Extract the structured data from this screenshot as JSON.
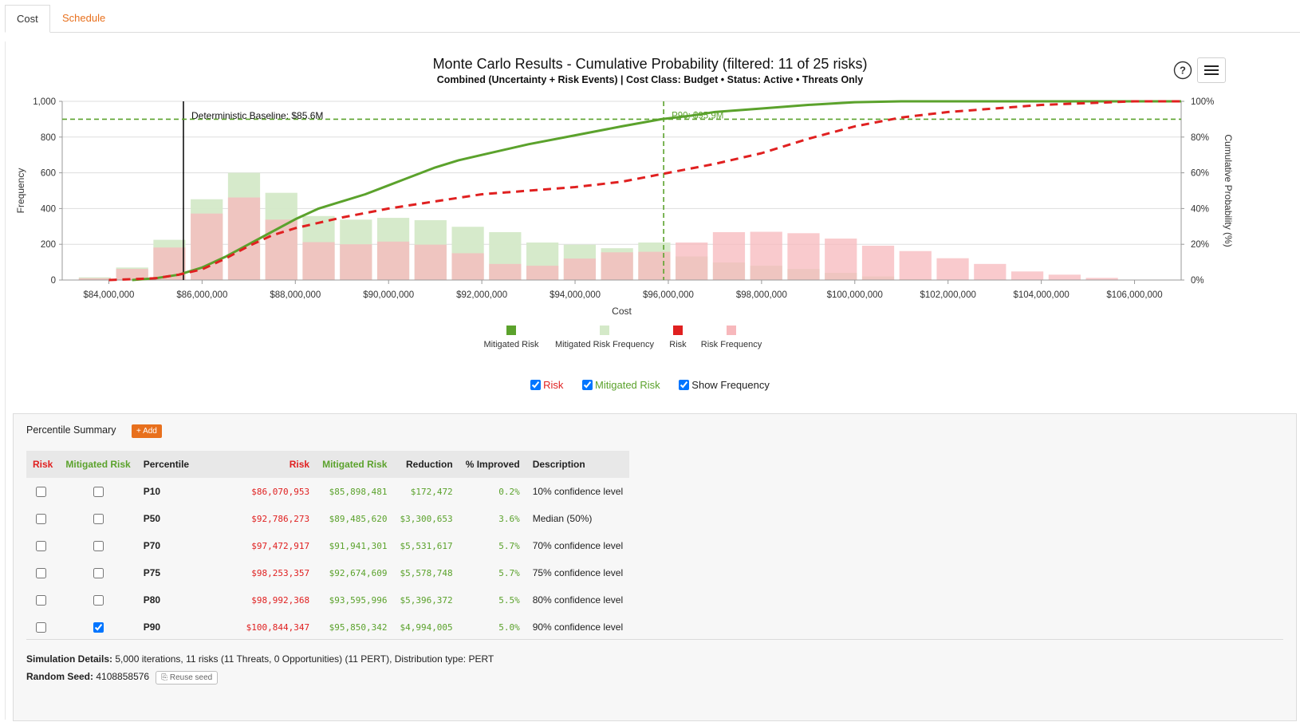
{
  "tabs": [
    {
      "label": "Cost"
    },
    {
      "label": "Schedule"
    }
  ],
  "chart_title": "Monte Carlo Results - Cumulative Probability (filtered: 11 of 25 risks)",
  "chart_subtitle": "Combined (Uncertainty + Risk Events) | Cost Class: Budget  •  Status: Active  •  Threats Only",
  "buttons": {
    "help": "?",
    "menu": "menu"
  },
  "colors": {
    "risk": "#e02020",
    "mitigated": "#5ba22c",
    "risk_freq": "#f7b8bc",
    "mitigated_freq": "#d4e9c8",
    "orange": "#e8701d"
  },
  "toggles": {
    "risk": "Risk",
    "mitigated": "Mitigated Risk",
    "show_frequency": "Show Frequency"
  },
  "chart_data": {
    "type": "bar+line",
    "xlabel": "Cost",
    "ylabel_left": "Frequency",
    "ylabel_right": "Cumulative Probability (%)",
    "x_range": [
      83000000,
      107000000
    ],
    "y_range_left": [
      0,
      1000
    ],
    "y_range_right": [
      0,
      100
    ],
    "x_ticks": [
      84000000,
      86000000,
      88000000,
      90000000,
      92000000,
      94000000,
      96000000,
      98000000,
      100000000,
      102000000,
      104000000,
      106000000
    ],
    "x_tick_labels": [
      "$84,000,000",
      "$86,000,000",
      "$88,000,000",
      "$90,000,000",
      "$92,000,000",
      "$94,000,000",
      "$96,000,000",
      "$98,000,000",
      "$100,000,000",
      "$102,000,000",
      "$104,000,000",
      "$106,000,000"
    ],
    "y_ticks_left": [
      "0",
      "200",
      "400",
      "600",
      "800",
      "1,000"
    ],
    "y_ticks_right": [
      "0%",
      "20%",
      "40%",
      "60%",
      "80%",
      "100%"
    ],
    "bin_centers": [
      83700000,
      84500000,
      85300000,
      86100000,
      86900000,
      87700000,
      88500000,
      89300000,
      90100000,
      90900000,
      91700000,
      92500000,
      93300000,
      94100000,
      94900000,
      95700000,
      96500000,
      97300000,
      98100000,
      98900000,
      99700000,
      100500000,
      101300000,
      102100000,
      102900000,
      103700000,
      104500000,
      105300000
    ],
    "risk_frequency": [
      10,
      62,
      182,
      372,
      462,
      338,
      212,
      200,
      215,
      198,
      150,
      90,
      80,
      120,
      155,
      158,
      210,
      268,
      270,
      262,
      232,
      192,
      162,
      122,
      90,
      48,
      30,
      12
    ],
    "mitigated_frequency": [
      15,
      70,
      225,
      452,
      600,
      488,
      358,
      338,
      348,
      335,
      298,
      268,
      210,
      198,
      178,
      210,
      132,
      98,
      80,
      62,
      40,
      20,
      5,
      0,
      0,
      0,
      0,
      0
    ],
    "series": [
      {
        "name": "Mitigated Risk",
        "style": "solid",
        "x": [
          84500000,
          85000000,
          85500000,
          86000000,
          86500000,
          87000000,
          87500000,
          88000000,
          88500000,
          89000000,
          89500000,
          90000000,
          90500000,
          91000000,
          91500000,
          92000000,
          93000000,
          94000000,
          95000000,
          95850000,
          96500000,
          97000000,
          98000000,
          99000000,
          100000000,
          101000000,
          107000000
        ],
        "y": [
          0,
          1,
          3,
          7,
          13,
          20,
          27,
          34,
          40,
          44,
          48,
          53,
          58,
          63,
          67,
          70,
          76,
          81,
          86,
          90,
          92,
          94,
          96,
          98,
          99.5,
          100,
          100
        ]
      },
      {
        "name": "Risk",
        "style": "dashed",
        "x": [
          84000000,
          85000000,
          85500000,
          86000000,
          86500000,
          87000000,
          87500000,
          88000000,
          88500000,
          89000000,
          90000000,
          91000000,
          92000000,
          93000000,
          94000000,
          95000000,
          96000000,
          97000000,
          98000000,
          99000000,
          100000000,
          101000000,
          102000000,
          103000000,
          104000000,
          105000000,
          106000000,
          107000000
        ],
        "y": [
          0,
          1,
          3,
          6,
          12,
          19,
          25,
          29,
          32,
          35,
          40,
          44,
          48,
          50,
          52,
          55,
          60,
          65,
          71,
          79,
          86,
          91,
          94,
          96,
          98,
          99,
          100,
          100
        ]
      }
    ],
    "baseline": {
      "x": 85600000,
      "label": "Deterministic Baseline: $85.6M"
    },
    "p90_marker": {
      "x": 95900000,
      "label": "P90: $95.9M",
      "y_percent": 90
    },
    "legend": [
      {
        "name": "Mitigated Risk",
        "color": "#5ba22c"
      },
      {
        "name": "Mitigated Risk Frequency",
        "color": "#d4e9c8"
      },
      {
        "name": "Risk",
        "color": "#e02020"
      },
      {
        "name": "Risk Frequency",
        "color": "#f7b8bc"
      }
    ],
    "legend_position": "bottom-center",
    "grid": true
  },
  "percentile": {
    "title": "Percentile Summary",
    "add_label": "+ Add",
    "headers": {
      "risk_sel": "Risk",
      "mit_sel": "Mitigated Risk",
      "percentile": "Percentile",
      "risk": "Risk",
      "mitigated": "Mitigated Risk",
      "reduction": "Reduction",
      "improved": "% Improved",
      "description": "Description"
    },
    "rows": [
      {
        "percentile": "P10",
        "risk": "$86,070,953",
        "mitigated": "$85,898,481",
        "reduction": "$172,472",
        "improved": "0.2%",
        "description": "10% confidence level",
        "risk_checked": false,
        "mit_checked": false
      },
      {
        "percentile": "P50",
        "risk": "$92,786,273",
        "mitigated": "$89,485,620",
        "reduction": "$3,300,653",
        "improved": "3.6%",
        "description": "Median (50%)",
        "risk_checked": false,
        "mit_checked": false
      },
      {
        "percentile": "P70",
        "risk": "$97,472,917",
        "mitigated": "$91,941,301",
        "reduction": "$5,531,617",
        "improved": "5.7%",
        "description": "70% confidence level",
        "risk_checked": false,
        "mit_checked": false
      },
      {
        "percentile": "P75",
        "risk": "$98,253,357",
        "mitigated": "$92,674,609",
        "reduction": "$5,578,748",
        "improved": "5.7%",
        "description": "75% confidence level",
        "risk_checked": false,
        "mit_checked": false
      },
      {
        "percentile": "P80",
        "risk": "$98,992,368",
        "mitigated": "$93,595,996",
        "reduction": "$5,396,372",
        "improved": "5.5%",
        "description": "80% confidence level",
        "risk_checked": false,
        "mit_checked": false
      },
      {
        "percentile": "P90",
        "risk": "$100,844,347",
        "mitigated": "$95,850,342",
        "reduction": "$4,994,005",
        "improved": "5.0%",
        "description": "90% confidence level",
        "risk_checked": false,
        "mit_checked": true
      }
    ]
  },
  "details": {
    "sim_label": "Simulation Details:",
    "sim_text": " 5,000 iterations, 11 risks (11 Threats, 0 Opportunities) (11 PERT), Distribution type: PERT",
    "seed_label": "Random Seed:",
    "seed_value": " 4108858576",
    "reuse_label": "Reuse seed"
  }
}
